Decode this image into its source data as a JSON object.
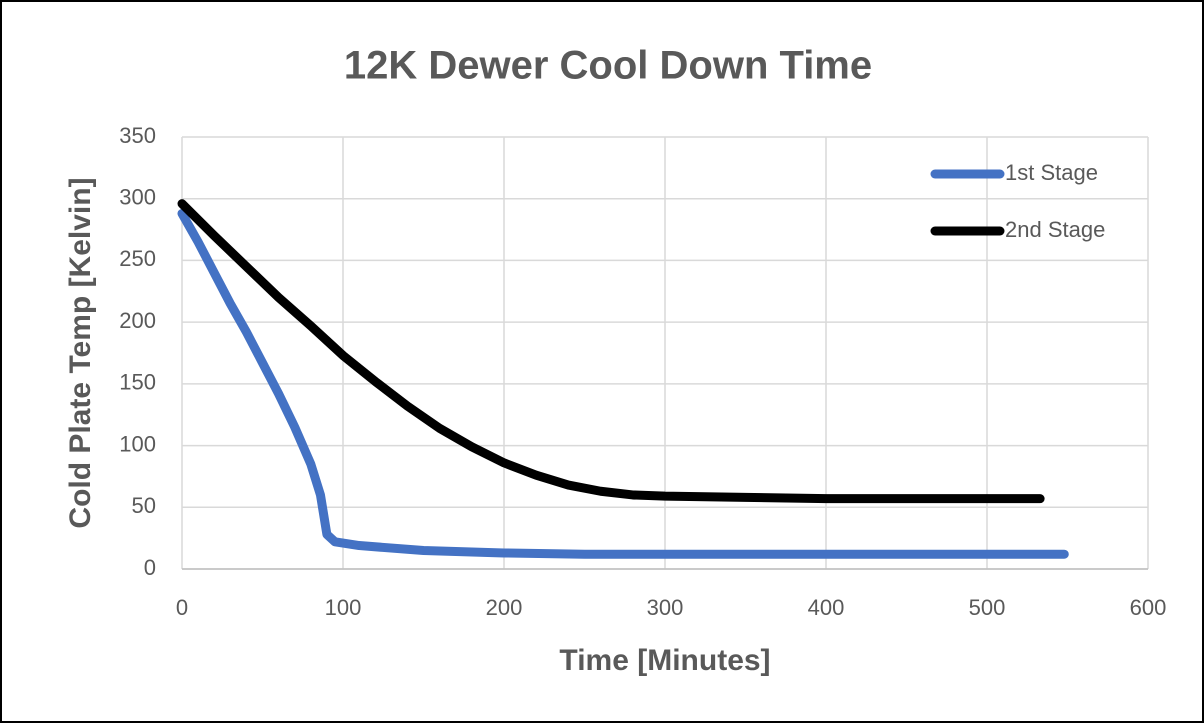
{
  "chart_data": {
    "type": "line",
    "title": "12K Dewer Cool Down Time",
    "x_label": "Time [Minutes]",
    "y_label": "Cold Plate Temp [Kelvin]",
    "xlim": [
      0,
      600
    ],
    "xticks": [
      0,
      100,
      200,
      300,
      400,
      500,
      600
    ],
    "ylim": [
      0,
      350
    ],
    "yticks": [
      0,
      50,
      100,
      150,
      200,
      250,
      300,
      350
    ],
    "grid": true,
    "legend": "upper right",
    "series": [
      {
        "name": "1st Stage",
        "color": "#4472c4",
        "x": [
          0,
          10,
          20,
          30,
          40,
          50,
          60,
          70,
          80,
          86,
          90,
          95,
          110,
          150,
          200,
          250,
          300,
          400,
          500,
          548
        ],
        "values": [
          288,
          265,
          240,
          215,
          192,
          167,
          142,
          115,
          85,
          60,
          28,
          22,
          19,
          15,
          13,
          12,
          12,
          12,
          12,
          12
        ]
      },
      {
        "name": "2nd Stage",
        "color": "#000000",
        "x": [
          0,
          20,
          40,
          60,
          80,
          100,
          120,
          140,
          160,
          180,
          200,
          220,
          240,
          260,
          280,
          300,
          350,
          400,
          450,
          500,
          533
        ],
        "values": [
          296,
          270,
          245,
          220,
          197,
          173,
          152,
          132,
          114,
          99,
          86,
          76,
          68,
          63,
          60,
          59,
          58,
          57,
          57,
          57,
          57
        ]
      }
    ]
  }
}
